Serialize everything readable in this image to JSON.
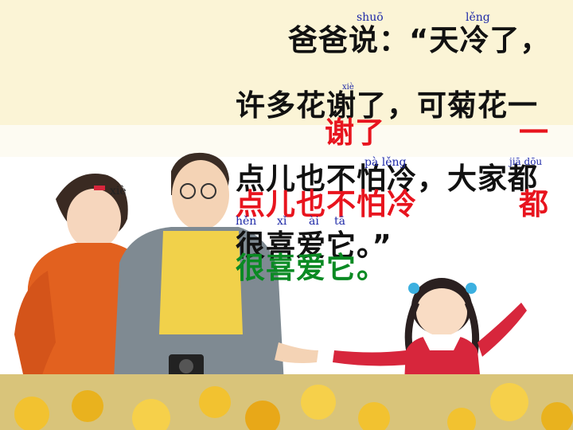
{
  "text": {
    "line1": "爸爸说：“天冷了，",
    "line2": "许多花谢了，可菊花一",
    "line2_red_a": "谢了",
    "line2_red_b": "一",
    "line3": "点儿也不怕冷，大家都",
    "line3_red_a": "点儿也不怕冷",
    "line3_red_b": "都",
    "line4": "很喜爱它。”",
    "line4_green": "很喜爱它。"
  },
  "pinyin": {
    "shuo": "shuō",
    "leng": "lěng",
    "xie_small": "xiè",
    "xie_left": "xiè",
    "dian_leng": "pà  lěng",
    "dou": "jiā  dōu",
    "hen": "hěn",
    "xi": "xǐ",
    "ai": "ài",
    "ta": "tā"
  },
  "colors": {
    "banner": "#fbf4d6",
    "red": "#e8141e",
    "green": "#0a8a23",
    "pinyin": "#1f2aa8"
  }
}
